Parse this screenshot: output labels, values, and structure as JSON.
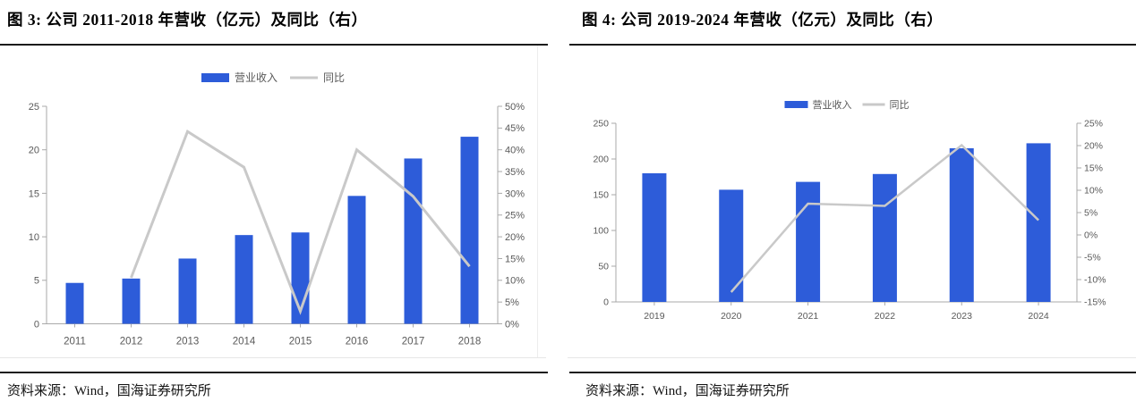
{
  "figures": [
    {
      "title": "图 3:  公司 2011-2018 年营收（亿元）及同比（右）",
      "source": "资料来源：Wind，国海证券研究所"
    },
    {
      "title": "图 4:  公司 2019-2024 年营收（亿元）及同比（右）",
      "source": "资料来源：Wind，国海证券研究所"
    }
  ],
  "chart_data": [
    {
      "type": "bar",
      "title": "图 3: 公司 2011-2018 年营收（亿元）及同比（右）",
      "categories": [
        "2011",
        "2012",
        "2013",
        "2014",
        "2015",
        "2016",
        "2017",
        "2018"
      ],
      "series": [
        {
          "name": "营业收入",
          "type": "bar",
          "axis": "left",
          "values": [
            4.7,
            5.2,
            7.5,
            10.2,
            10.5,
            14.7,
            19.0,
            21.5
          ]
        },
        {
          "name": "同比",
          "type": "line",
          "axis": "right",
          "unit": "%",
          "values": [
            null,
            10.6,
            44.2,
            36.0,
            2.9,
            40.0,
            29.3,
            13.2
          ]
        }
      ],
      "left_axis": {
        "min": 0,
        "max": 25,
        "step": 5,
        "suffix": ""
      },
      "right_axis": {
        "min": 0,
        "max": 50,
        "step": 5,
        "suffix": "%"
      },
      "legend_position": "top",
      "grid": false,
      "colors": {
        "bar": "#2D5CD9",
        "line": "#C9C9C9"
      }
    },
    {
      "type": "bar",
      "title": "图 4: 公司 2019-2024 年营收（亿元）及同比（右）",
      "categories": [
        "2019",
        "2020",
        "2021",
        "2022",
        "2023",
        "2024"
      ],
      "series": [
        {
          "name": "营业收入",
          "type": "bar",
          "axis": "left",
          "values": [
            180,
            157,
            168,
            179,
            215,
            222
          ]
        },
        {
          "name": "同比",
          "type": "line",
          "axis": "right",
          "unit": "%",
          "values": [
            null,
            -12.8,
            7.0,
            6.5,
            20.1,
            3.3
          ]
        }
      ],
      "left_axis": {
        "min": 0,
        "max": 250,
        "step": 50,
        "suffix": ""
      },
      "right_axis": {
        "min": -15,
        "max": 25,
        "step": 5,
        "suffix": "%"
      },
      "legend_position": "top",
      "grid": false,
      "colors": {
        "bar": "#2D5CD9",
        "line": "#C9C9C9"
      }
    }
  ],
  "style": {
    "axis_color": "#A9A9A9",
    "tick_text_color": "#595959",
    "rule_color": "#1b1b1b"
  }
}
